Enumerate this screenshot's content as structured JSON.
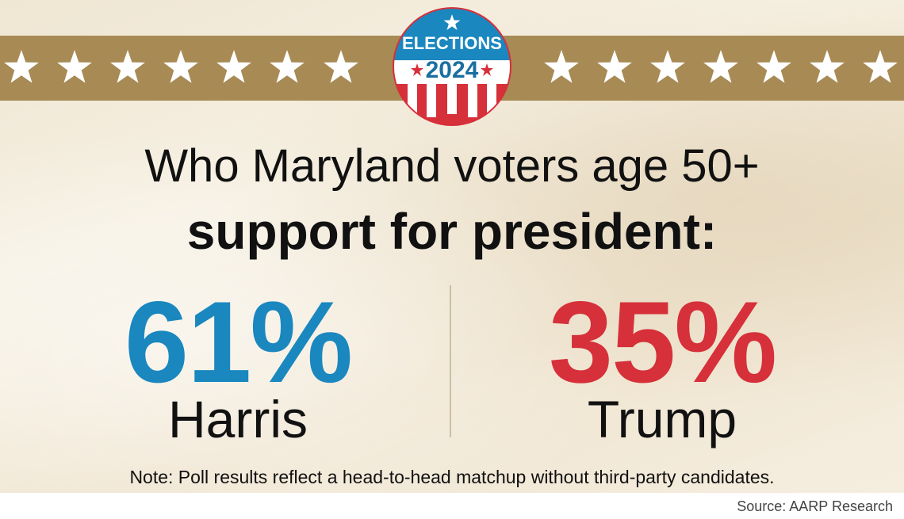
{
  "badge": {
    "line1": "ELECTIONS",
    "line2": "2024",
    "colors": {
      "blue": "#1a87bf",
      "red": "#d6303a"
    }
  },
  "headline": {
    "line1": "Who Maryland voters age 50+",
    "line2": "support for president:"
  },
  "results": [
    {
      "percent": "61%",
      "candidate": "Harris",
      "color": "#1a87bf"
    },
    {
      "percent": "35%",
      "candidate": "Trump",
      "color": "#d6303a"
    }
  ],
  "note": "Note: Poll results reflect a head-to-head matchup without third-party candidates.",
  "source": "Source: AARP Research",
  "colors": {
    "band": "#a88a54",
    "background": "#f3ebdb",
    "text": "#111111"
  }
}
